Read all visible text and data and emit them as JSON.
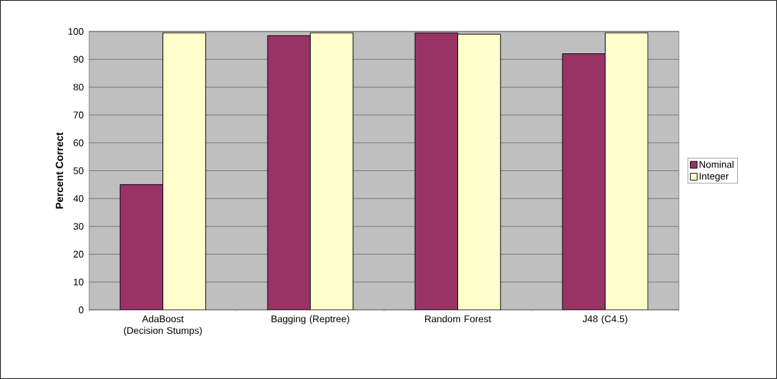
{
  "chart_data": {
    "type": "bar",
    "ylabel": "Percent Correct",
    "categories": [
      "AdaBoost (Decision Stumps)",
      "Bagging (Reptree)",
      "Random Forest",
      "J48 (C4.5)"
    ],
    "series": [
      {
        "name": "Nominal",
        "color": "#993366",
        "values": [
          45,
          98.5,
          99.5,
          92
        ]
      },
      {
        "name": "Integer",
        "color": "#ffffcc",
        "values": [
          99.5,
          99.5,
          99,
          99.5
        ]
      }
    ],
    "ylim": [
      0,
      100
    ],
    "yticks": [
      0,
      10,
      20,
      30,
      40,
      50,
      60,
      70,
      80,
      90,
      100
    ],
    "grid": "y",
    "legend": "right"
  }
}
